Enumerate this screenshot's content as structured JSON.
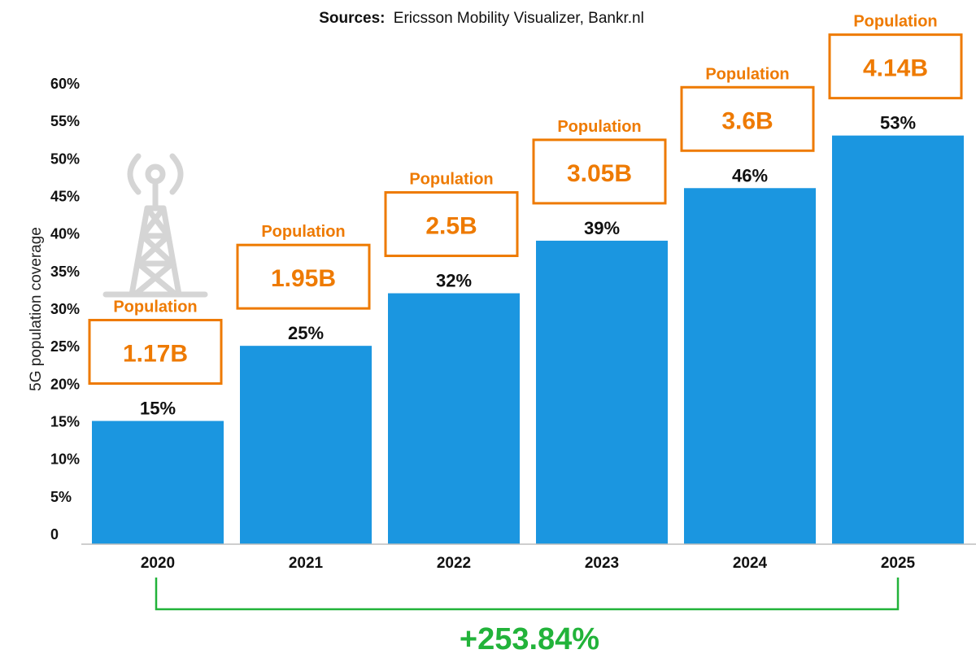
{
  "source_prefix": "Sources:",
  "source_text": "Ericsson Mobility Visualizer, Bankr.nl",
  "chart_data": {
    "type": "bar",
    "ylabel": "5G population coverage",
    "ylim": [
      0,
      60
    ],
    "yticks": [
      "0",
      "5%",
      "10%",
      "15%",
      "20%",
      "25%",
      "30%",
      "35%",
      "40%",
      "45%",
      "50%",
      "55%",
      "60%"
    ],
    "categories": [
      "2020",
      "2021",
      "2022",
      "2023",
      "2024",
      "2025"
    ],
    "values": [
      15,
      25,
      32,
      39,
      46,
      53
    ],
    "value_labels": [
      "15%",
      "25%",
      "32%",
      "39%",
      "46%",
      "53%"
    ],
    "population_heading": "Population",
    "population_values": [
      "1.17B",
      "1.95B",
      "2.5B",
      "3.05B",
      "3.6B",
      "4.14B"
    ],
    "growth_label": "+253.84%",
    "colors": {
      "bar": "#1b96e0",
      "population": "#ee7a00",
      "growth": "#22b33a",
      "icon": "#d5d5d5"
    },
    "icon": "cell-tower-icon"
  }
}
